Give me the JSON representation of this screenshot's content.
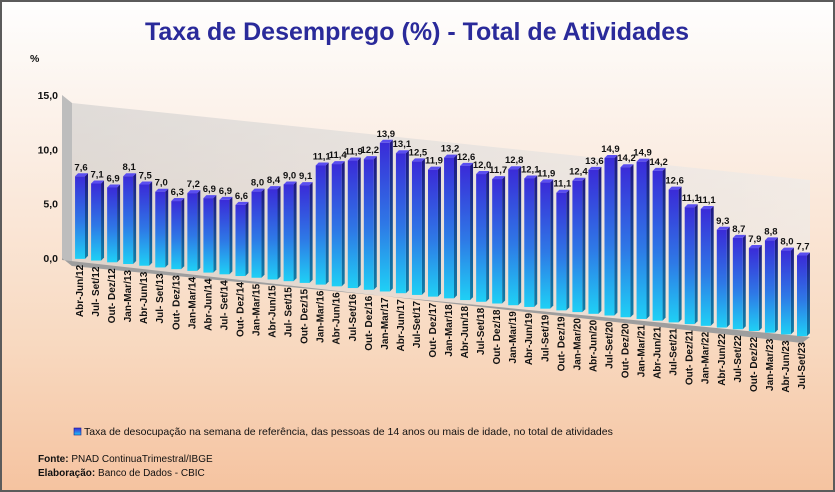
{
  "chart_data": {
    "type": "bar",
    "title": "Taxa de Desemprego (%) - Total de Atividades",
    "ylabel": "%",
    "ylim": [
      0,
      15
    ],
    "yticks": [
      "0,0",
      "5,0",
      "10,0",
      "15,0"
    ],
    "grid": false,
    "legend_position": "bottom",
    "categories": [
      "Abr-Jun/12",
      "Jul- Set/12",
      "Out- Dez/12",
      "Jan-Mar/13",
      "Abr-Jun/13",
      "Jul- Set/13",
      "Out- Dez/13",
      "Jan-Mar/14",
      "Abr-Jun/14",
      "Jul- Set/14",
      "Out- Dez/14",
      "Jan-Mar/15",
      "Abr-Jun/15",
      "Jul- Set/15",
      "Out- Dez/15",
      "Jan-Mar/16",
      "Abr-Jun/16",
      "Jul-Set/16",
      "Out- Dez/16",
      "Jan-Mar/17",
      "Abr-Jun/17",
      "Jul-Set/17",
      "Out- Dez/17",
      "Jan-Mar/18",
      "Abr-Jun/18",
      "Jul-Set/18",
      "Out- Dez/18",
      "Jan-Mar/19",
      "Abr-Jun/19",
      "Jul-Set/19",
      "Out- Dez/19",
      "Jan-Mar/20",
      "Abr-Jun/20",
      "Jul-Set/20",
      "Out- Dez/20",
      "Jan-Mar/21",
      "Abr-Jun/21",
      "Jul-Set/21",
      "Out- Dez/21",
      "Jan-Mar/22",
      "Abr-Jun/22",
      "Jul-Set/22",
      "Out- Dez/22",
      "Jan-Mar/23",
      "Abr-Jun/23",
      "Jul-Set/23"
    ],
    "series": [
      {
        "name": "Taxa de desocupação na semana de referência, das pessoas de 14 anos ou mais de idade, no total de atividades",
        "values": [
          7.6,
          7.1,
          6.9,
          8.1,
          7.5,
          7.0,
          6.3,
          7.2,
          6.9,
          6.9,
          6.6,
          8.0,
          8.4,
          9.0,
          9.1,
          11.1,
          11.4,
          11.9,
          12.2,
          13.9,
          13.1,
          12.5,
          11.9,
          13.2,
          12.6,
          12.0,
          11.7,
          12.8,
          12.1,
          11.9,
          11.1,
          12.4,
          13.6,
          14.9,
          14.2,
          14.9,
          14.2,
          12.6,
          11.1,
          11.1,
          9.3,
          8.7,
          7.9,
          8.8,
          8.0,
          7.7
        ],
        "labels": [
          "7,6",
          "7,1",
          "6,9",
          "8,1",
          "7,5",
          "7,0",
          "6,3",
          "7,2",
          "6,9",
          "6,9",
          "6,6",
          "8,0",
          "8,4",
          "9,0",
          "9,1",
          "11,1",
          "11,4",
          "11,9",
          "12,2",
          "13,9",
          "13,1",
          "12,5",
          "11,9",
          "13,2",
          "12,6",
          "12,0",
          "11,7",
          "12,8",
          "12,1",
          "11,9",
          "11,1",
          "12,4",
          "13,6",
          "14,9",
          "14,2",
          "14,9",
          "14,2",
          "12,6",
          "11,1",
          "11,1",
          "9,3",
          "8,7",
          "7,9",
          "8,8",
          "8,0",
          "7,7"
        ]
      }
    ],
    "colors": {
      "title": "#2a2a9a",
      "bar_top": "#3b2fd9",
      "bar_bottom": "#20c8f2"
    }
  },
  "footer": {
    "source_label": "Fonte:",
    "source_text": "PNAD ContinuaTrimestral/IBGE",
    "credit_label": "Elaboração:",
    "credit_text": "Banco de Dados - CBIC"
  }
}
